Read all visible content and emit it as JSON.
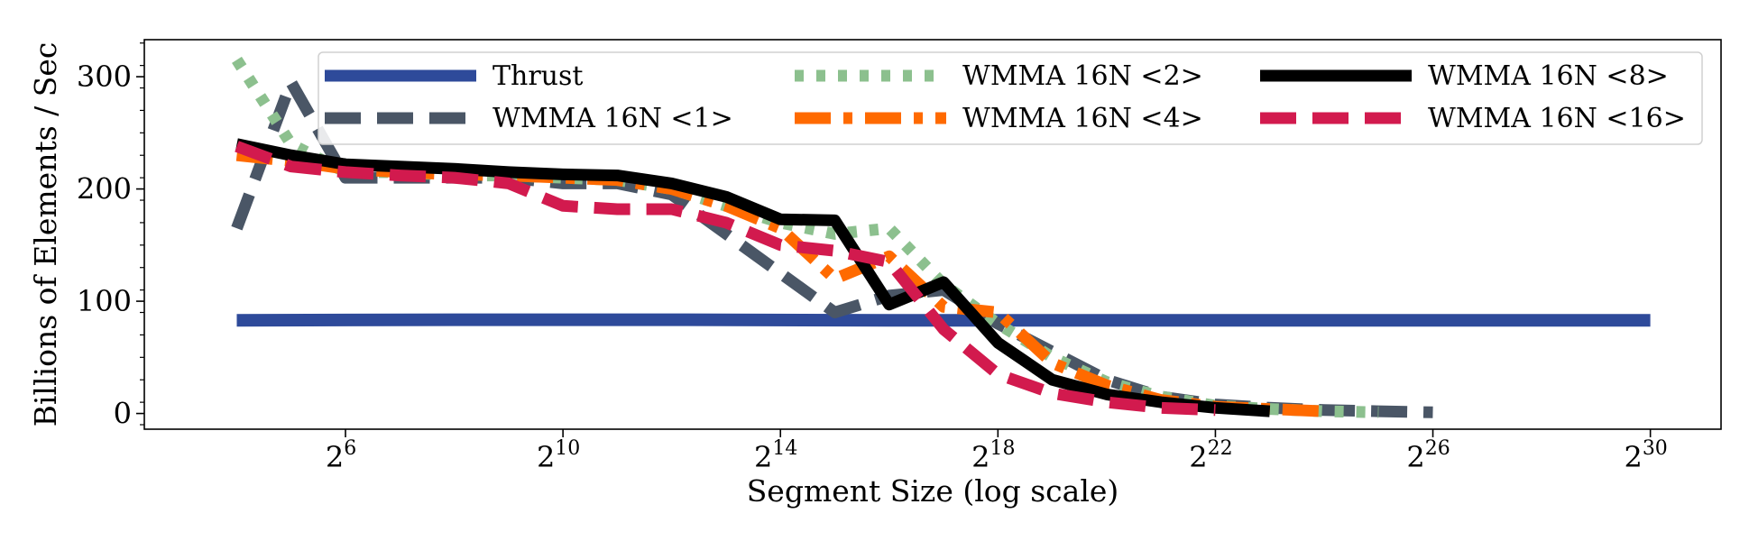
{
  "chart_data": {
    "type": "line",
    "xlabel": "Segment Size (log scale)",
    "ylabel": "Billions of Elements / Sec",
    "x_scale": "log2",
    "x_ticks": [
      6,
      10,
      14,
      18,
      22,
      26,
      30
    ],
    "xlim": [
      2.3,
      31.3
    ],
    "y_ticks": [
      0,
      100,
      200,
      300
    ],
    "ylim": [
      -14,
      333
    ],
    "grid": false,
    "legend_position": "upper-right",
    "series": [
      {
        "name": "Thrust",
        "color": "#2e4a9a",
        "dash": "solid",
        "points": [
          [
            4,
            83
          ],
          [
            8,
            83.5
          ],
          [
            12,
            83.5
          ],
          [
            16,
            83
          ],
          [
            20,
            83
          ],
          [
            24,
            83
          ],
          [
            30,
            83
          ]
        ]
      },
      {
        "name": "WMMA 16N <1>",
        "color": "#4a5666",
        "dash": "longdash",
        "points": [
          [
            4,
            165
          ],
          [
            5,
            295
          ],
          [
            6,
            210
          ],
          [
            7,
            210
          ],
          [
            8,
            210
          ],
          [
            9,
            210
          ],
          [
            10,
            205
          ],
          [
            11,
            205
          ],
          [
            12,
            195
          ],
          [
            13,
            160
          ],
          [
            14,
            125
          ],
          [
            15,
            90
          ],
          [
            16,
            105
          ],
          [
            17,
            110
          ],
          [
            18,
            80
          ],
          [
            19,
            55
          ],
          [
            20,
            30
          ],
          [
            21,
            15
          ],
          [
            22,
            8
          ],
          [
            23,
            5
          ],
          [
            24,
            3
          ],
          [
            25,
            2
          ],
          [
            26,
            1
          ]
        ]
      },
      {
        "name": "WMMA 16N <2>",
        "color": "#8cc08e",
        "dash": "dotted",
        "points": [
          [
            4,
            315
          ],
          [
            5,
            240
          ],
          [
            6,
            215
          ],
          [
            7,
            215
          ],
          [
            8,
            212
          ],
          [
            9,
            212
          ],
          [
            10,
            210
          ],
          [
            11,
            208
          ],
          [
            12,
            200
          ],
          [
            13,
            185
          ],
          [
            14,
            170
          ],
          [
            15,
            160
          ],
          [
            16,
            165
          ],
          [
            17,
            115
          ],
          [
            18,
            80
          ],
          [
            19,
            50
          ],
          [
            20,
            28
          ],
          [
            21,
            15
          ],
          [
            22,
            7
          ],
          [
            23,
            4
          ],
          [
            24,
            2
          ],
          [
            25,
            1
          ]
        ]
      },
      {
        "name": "WMMA 16N <4>",
        "color": "#ff6a00",
        "dash": "dashdot",
        "points": [
          [
            4,
            230
          ],
          [
            5,
            225
          ],
          [
            6,
            218
          ],
          [
            7,
            215
          ],
          [
            8,
            213
          ],
          [
            9,
            212
          ],
          [
            10,
            210
          ],
          [
            11,
            208
          ],
          [
            12,
            200
          ],
          [
            13,
            185
          ],
          [
            14,
            165
          ],
          [
            15,
            120
          ],
          [
            16,
            140
          ],
          [
            17,
            95
          ],
          [
            18,
            90
          ],
          [
            19,
            45
          ],
          [
            20,
            25
          ],
          [
            21,
            12
          ],
          [
            22,
            6
          ],
          [
            23,
            4
          ],
          [
            24,
            2
          ]
        ]
      },
      {
        "name": "WMMA 16N <8>",
        "color": "#000000",
        "dash": "solid",
        "points": [
          [
            4,
            240
          ],
          [
            5,
            230
          ],
          [
            6,
            222
          ],
          [
            7,
            220
          ],
          [
            8,
            218
          ],
          [
            9,
            215
          ],
          [
            10,
            213
          ],
          [
            11,
            212
          ],
          [
            12,
            205
          ],
          [
            13,
            193
          ],
          [
            14,
            173
          ],
          [
            15,
            172
          ],
          [
            16,
            97
          ],
          [
            17,
            117
          ],
          [
            18,
            63
          ],
          [
            19,
            30
          ],
          [
            20,
            17
          ],
          [
            21,
            10
          ],
          [
            22,
            5
          ],
          [
            23,
            2
          ]
        ]
      },
      {
        "name": "WMMA 16N <16>",
        "color": "#d21a4e",
        "dash": "longdash",
        "points": [
          [
            4,
            238
          ],
          [
            5,
            220
          ],
          [
            6,
            215
          ],
          [
            7,
            212
          ],
          [
            8,
            210
          ],
          [
            9,
            205
          ],
          [
            10,
            185
          ],
          [
            11,
            182
          ],
          [
            12,
            182
          ],
          [
            13,
            170
          ],
          [
            14,
            150
          ],
          [
            15,
            145
          ],
          [
            16,
            135
          ],
          [
            17,
            75
          ],
          [
            18,
            35
          ],
          [
            19,
            18
          ],
          [
            20,
            10
          ],
          [
            21,
            5
          ],
          [
            22,
            3
          ]
        ]
      }
    ],
    "legend_layout": [
      [
        "Thrust",
        "WMMA 16N <1>"
      ],
      [
        "WMMA 16N <2>",
        "WMMA 16N <4>"
      ],
      [
        "WMMA 16N <8>",
        "WMMA 16N <16>"
      ]
    ]
  }
}
